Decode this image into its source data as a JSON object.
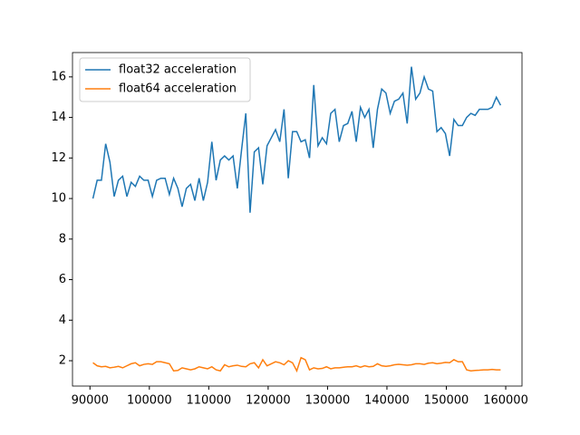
{
  "chart_data": {
    "type": "line",
    "x": [
      90500,
      91215,
      91930,
      92645,
      93360,
      94075,
      94790,
      95505,
      96220,
      96935,
      97650,
      98365,
      99080,
      99795,
      100510,
      101225,
      101940,
      102655,
      103370,
      104085,
      104800,
      105515,
      106230,
      106945,
      107660,
      108375,
      109090,
      109805,
      110520,
      111235,
      111950,
      112665,
      113380,
      114095,
      114810,
      115525,
      116240,
      116955,
      117670,
      118385,
      119100,
      119815,
      120530,
      121245,
      121960,
      122675,
      123390,
      124105,
      124820,
      125535,
      126250,
      126965,
      127680,
      128395,
      129110,
      129825,
      130540,
      131255,
      131970,
      132685,
      133400,
      134115,
      134830,
      135545,
      136260,
      136975,
      137690,
      138405,
      139120,
      139835,
      140550,
      141265,
      141980,
      142695,
      143410,
      144125,
      144840,
      145555,
      146270,
      146985,
      147700,
      148415,
      149130,
      149845,
      150560,
      151275,
      151990,
      152705,
      153420,
      154135,
      154850,
      155565,
      156280,
      156995,
      157710,
      158425,
      159140
    ],
    "series": [
      {
        "name": "float32 acceleration",
        "color": "#1f77b4",
        "values": [
          10.0,
          10.9,
          10.9,
          12.7,
          11.8,
          10.1,
          10.9,
          11.1,
          10.1,
          10.8,
          10.6,
          11.1,
          10.9,
          10.9,
          10.1,
          10.9,
          11.0,
          11.0,
          10.2,
          11.0,
          10.5,
          9.6,
          10.5,
          10.7,
          9.9,
          11.0,
          9.9,
          10.8,
          12.8,
          10.9,
          11.9,
          12.1,
          11.9,
          12.1,
          10.5,
          12.4,
          14.2,
          9.3,
          12.3,
          12.5,
          10.7,
          12.6,
          13.0,
          13.4,
          12.8,
          14.4,
          11.0,
          13.3,
          13.3,
          12.8,
          12.9,
          12.0,
          15.6,
          12.6,
          13.0,
          12.7,
          14.2,
          14.4,
          12.8,
          13.6,
          13.7,
          14.3,
          12.8,
          14.5,
          14.0,
          14.4,
          12.5,
          14.4,
          15.4,
          15.2,
          14.2,
          14.8,
          14.9,
          15.2,
          13.7,
          16.5,
          14.9,
          15.2,
          16.0,
          15.4,
          15.3,
          13.3,
          13.5,
          13.2,
          12.1,
          13.9,
          13.6,
          13.6,
          14.0,
          14.2,
          14.1,
          14.4,
          14.4,
          14.4,
          14.5,
          15.0,
          14.6
        ]
      },
      {
        "name": "float64 acceleration",
        "color": "#ff7f0e",
        "values": [
          1.9,
          1.75,
          1.7,
          1.72,
          1.65,
          1.68,
          1.72,
          1.65,
          1.75,
          1.85,
          1.9,
          1.75,
          1.82,
          1.85,
          1.82,
          1.95,
          1.95,
          1.9,
          1.85,
          1.5,
          1.52,
          1.65,
          1.6,
          1.55,
          1.6,
          1.7,
          1.65,
          1.6,
          1.7,
          1.55,
          1.5,
          1.8,
          1.7,
          1.75,
          1.78,
          1.72,
          1.7,
          1.85,
          1.9,
          1.65,
          2.05,
          1.75,
          1.85,
          1.95,
          1.9,
          1.8,
          2.0,
          1.9,
          1.5,
          2.15,
          2.05,
          1.55,
          1.65,
          1.6,
          1.62,
          1.7,
          1.6,
          1.65,
          1.65,
          1.68,
          1.7,
          1.7,
          1.75,
          1.68,
          1.75,
          1.7,
          1.72,
          1.85,
          1.75,
          1.72,
          1.75,
          1.8,
          1.82,
          1.8,
          1.78,
          1.8,
          1.85,
          1.85,
          1.82,
          1.88,
          1.9,
          1.85,
          1.88,
          1.92,
          1.9,
          2.05,
          1.95,
          1.95,
          1.55,
          1.5,
          1.52,
          1.53,
          1.55,
          1.55,
          1.57,
          1.55,
          1.55
        ]
      }
    ],
    "xlim": [
      87060,
      162740
    ],
    "xticks": [
      90000,
      100000,
      110000,
      120000,
      130000,
      140000,
      150000,
      160000
    ],
    "ylim": [
      0.75,
      17.2
    ],
    "yticks": [
      2,
      4,
      6,
      8,
      10,
      12,
      14,
      16
    ],
    "legend": "upper left"
  }
}
